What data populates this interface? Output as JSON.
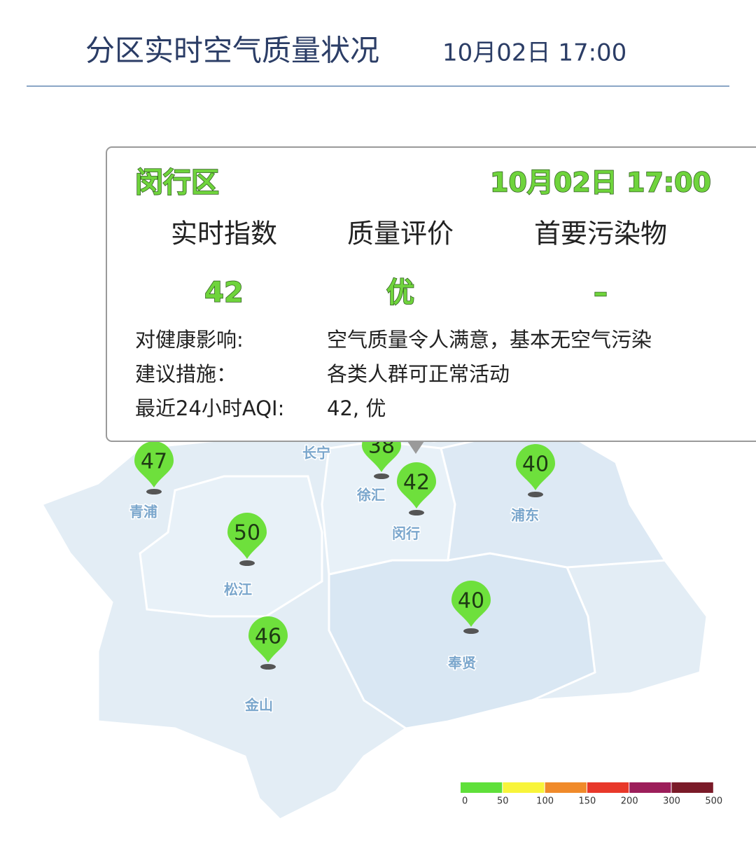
{
  "header": {
    "title": "分区实时空气质量状况",
    "time": "10月02日 17:00"
  },
  "markers": [
    {
      "name": "青浦",
      "aqi": 47
    },
    {
      "name": "松江",
      "aqi": 50
    },
    {
      "name": "金山",
      "aqi": 46
    },
    {
      "name": "徐汇",
      "aqi": 38
    },
    {
      "name": "闵行",
      "aqi": 42
    },
    {
      "name": "浦东",
      "aqi": 40
    },
    {
      "name": "奉贤",
      "aqi": 40
    }
  ],
  "labels": [
    "长宁"
  ],
  "popup": {
    "district": "闵行区",
    "time": "10月02日 17:00",
    "headers": [
      "实时指数",
      "质量评价",
      "首要污染物"
    ],
    "values": [
      42,
      "优",
      "–"
    ],
    "details": [
      {
        "label": "对健康影响:",
        "text": "空气质量令人满意，基本无空气污染"
      },
      {
        "label": "建议措施：",
        "text": "各类人群可正常活动"
      },
      {
        "label": "最近24小时AQI:",
        "text": "42, 优"
      }
    ]
  },
  "legend": {
    "colors": [
      "#5fe03a",
      "#f8f43a",
      "#f08a2a",
      "#e8382a",
      "#9c1e5a",
      "#7a1a28"
    ],
    "ticks": [
      0,
      50,
      100,
      150,
      200,
      300,
      500
    ]
  }
}
